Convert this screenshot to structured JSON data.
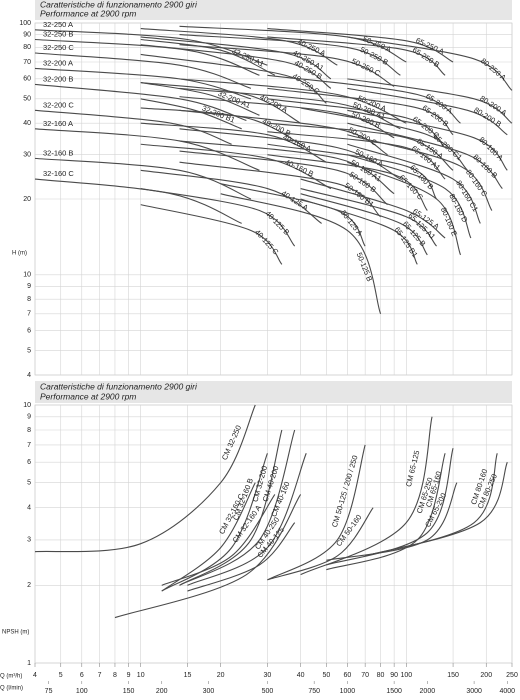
{
  "chart_data": [
    {
      "type": "line",
      "title": "Caratteristiche di funzionamento 2900 giri",
      "subtitle": "Performance at 2900 rpm",
      "ylabel": "H (m)",
      "log": true,
      "grid": true,
      "color": "#4a4a4a",
      "xlim": [
        4,
        250
      ],
      "ylim": [
        4,
        100
      ],
      "yticks": [
        4,
        5,
        6,
        7,
        8,
        9,
        10,
        20,
        30,
        40,
        50,
        60,
        70,
        80,
        90,
        100
      ],
      "series": [
        {
          "name": "32-250 A",
          "x": [
            4,
            15,
            30
          ],
          "values": [
            94,
            86,
            68
          ]
        },
        {
          "name": "32-250 A1",
          "x": [
            10,
            20,
            32
          ],
          "values": [
            86,
            78,
            62
          ]
        },
        {
          "name": "32-250 B",
          "x": [
            4,
            15,
            28
          ],
          "values": [
            86,
            78,
            62
          ]
        },
        {
          "name": "32-250 C",
          "x": [
            4,
            14,
            26
          ],
          "values": [
            76,
            68,
            55
          ]
        },
        {
          "name": "32-200 A",
          "x": [
            4,
            14,
            26
          ],
          "values": [
            66,
            60,
            50
          ]
        },
        {
          "name": "32-200 A1",
          "x": [
            10,
            18,
            28
          ],
          "values": [
            58,
            52,
            43
          ]
        },
        {
          "name": "32-200 B",
          "x": [
            4,
            14,
            25
          ],
          "values": [
            57,
            50,
            41
          ]
        },
        {
          "name": "32-200 B1",
          "x": [
            10,
            16,
            24
          ],
          "values": [
            50,
            45,
            38
          ]
        },
        {
          "name": "32-200 C",
          "x": [
            4,
            13,
            22
          ],
          "values": [
            45,
            40,
            33
          ]
        },
        {
          "name": "32-160 A",
          "x": [
            4,
            14,
            28
          ],
          "values": [
            38,
            34,
            26
          ]
        },
        {
          "name": "32-160 B",
          "x": [
            4,
            14,
            26
          ],
          "values": [
            29,
            26,
            20
          ]
        },
        {
          "name": "32-160 C",
          "x": [
            4,
            13,
            24
          ],
          "values": [
            24,
            21,
            16
          ]
        },
        {
          "name": "40-200 A",
          "x": [
            10,
            25,
            40
          ],
          "values": [
            58,
            52,
            40
          ]
        },
        {
          "name": "40-200 B",
          "x": [
            10,
            25,
            42
          ],
          "values": [
            46,
            42,
            32
          ]
        },
        {
          "name": "40-250 A",
          "x": [
            10,
            35,
            55
          ],
          "values": [
            95,
            85,
            68
          ]
        },
        {
          "name": "40-250 A1",
          "x": [
            10,
            35,
            52
          ],
          "values": [
            88,
            76,
            60
          ]
        },
        {
          "name": "40-250 B",
          "x": [
            10,
            35,
            52
          ],
          "values": [
            82,
            70,
            55
          ]
        },
        {
          "name": "40-250 C",
          "x": [
            10,
            35,
            50
          ],
          "values": [
            75,
            62,
            48
          ]
        },
        {
          "name": "40-160 A",
          "x": [
            10,
            30,
            50
          ],
          "values": [
            40,
            36,
            28
          ]
        },
        {
          "name": "40-160 B",
          "x": [
            10,
            30,
            52
          ],
          "values": [
            33,
            29,
            22
          ]
        },
        {
          "name": "40-125 A",
          "x": [
            10,
            30,
            48
          ],
          "values": [
            26,
            22,
            16
          ]
        },
        {
          "name": "40-125 B",
          "x": [
            10,
            28,
            38
          ],
          "values": [
            22,
            18,
            13
          ]
        },
        {
          "name": "40-125 C",
          "x": [
            10,
            26,
            34
          ],
          "values": [
            19,
            15,
            11
          ]
        },
        {
          "name": "50-250 A",
          "x": [
            14,
            60,
            100
          ],
          "values": [
            97,
            88,
            70
          ]
        },
        {
          "name": "50-250 B",
          "x": [
            14,
            60,
            95
          ],
          "values": [
            90,
            80,
            62
          ]
        },
        {
          "name": "50-250 C",
          "x": [
            14,
            55,
            90
          ],
          "values": [
            82,
            72,
            56
          ]
        },
        {
          "name": "50-200 A",
          "x": [
            14,
            55,
            100
          ],
          "values": [
            60,
            52,
            40
          ]
        },
        {
          "name": "50-200 A1",
          "x": [
            14,
            55,
            95
          ],
          "values": [
            55,
            48,
            38
          ]
        },
        {
          "name": "50-200 B",
          "x": [
            14,
            55,
            90
          ],
          "values": [
            51,
            44,
            35
          ]
        },
        {
          "name": "50-200 C",
          "x": [
            14,
            55,
            85
          ],
          "values": [
            45,
            38,
            30
          ]
        },
        {
          "name": "50-160 A",
          "x": [
            14,
            55,
            95
          ],
          "values": [
            38,
            32,
            24
          ]
        },
        {
          "name": "50-160 A1",
          "x": [
            14,
            55,
            90
          ],
          "values": [
            34,
            29,
            21
          ]
        },
        {
          "name": "50-160 B",
          "x": [
            14,
            55,
            85
          ],
          "values": [
            31,
            26,
            19
          ]
        },
        {
          "name": "50-160 B1",
          "x": [
            14,
            55,
            80
          ],
          "values": [
            28,
            23,
            17
          ]
        },
        {
          "name": "50-125 A",
          "x": [
            20,
            55,
            70
          ],
          "values": [
            23,
            18,
            13
          ]
        },
        {
          "name": "50-125 B",
          "x": [
            20,
            60,
            80
          ],
          "values": [
            21,
            15,
            7
          ]
        },
        {
          "name": "65-250 A",
          "x": [
            30,
            100,
            150
          ],
          "values": [
            95,
            85,
            70
          ]
        },
        {
          "name": "65-250 B",
          "x": [
            30,
            100,
            140
          ],
          "values": [
            88,
            78,
            62
          ]
        },
        {
          "name": "65-200 A",
          "x": [
            30,
            110,
            160
          ],
          "values": [
            62,
            52,
            40
          ]
        },
        {
          "name": "65-200 B",
          "x": [
            30,
            110,
            150
          ],
          "values": [
            55,
            46,
            36
          ]
        },
        {
          "name": "65-200 C",
          "x": [
            30,
            100,
            140
          ],
          "values": [
            50,
            42,
            32
          ]
        },
        {
          "name": "65-200 C1",
          "x": [
            40,
            120,
            170
          ],
          "values": [
            46,
            36,
            26
          ]
        },
        {
          "name": "65-160 A",
          "x": [
            30,
            100,
            150
          ],
          "values": [
            40,
            35,
            26
          ]
        },
        {
          "name": "65-160 A1",
          "x": [
            30,
            100,
            140
          ],
          "values": [
            37,
            32,
            24
          ]
        },
        {
          "name": "65-160 B",
          "x": [
            30,
            100,
            130
          ],
          "values": [
            33,
            27,
            20
          ]
        },
        {
          "name": "65-160 C",
          "x": [
            30,
            90,
            120
          ],
          "values": [
            30,
            25,
            18
          ]
        },
        {
          "name": "65-125 A",
          "x": [
            40,
            100,
            140
          ],
          "values": [
            24,
            18,
            14
          ]
        },
        {
          "name": "65-125 A1",
          "x": [
            40,
            100,
            130
          ],
          "values": [
            22,
            17,
            13
          ]
        },
        {
          "name": "65-125 B",
          "x": [
            40,
            95,
            120
          ],
          "values": [
            21,
            16,
            12
          ]
        },
        {
          "name": "65-125 B1",
          "x": [
            40,
            90,
            110
          ],
          "values": [
            20,
            15,
            11
          ]
        },
        {
          "name": "80-250 A",
          "x": [
            60,
            180,
            250
          ],
          "values": [
            88,
            72,
            54
          ]
        },
        {
          "name": "80-200 A",
          "x": [
            60,
            180,
            250
          ],
          "values": [
            60,
            50,
            40
          ]
        },
        {
          "name": "80-200 B",
          "x": [
            60,
            170,
            240
          ],
          "values": [
            55,
            45,
            36
          ]
        },
        {
          "name": "80-160 A",
          "x": [
            60,
            180,
            240
          ],
          "values": [
            45,
            35,
            26
          ]
        },
        {
          "name": "80-160 B",
          "x": [
            60,
            170,
            230
          ],
          "values": [
            40,
            30,
            22
          ]
        },
        {
          "name": "80-160 C",
          "x": [
            60,
            160,
            210
          ],
          "values": [
            36,
            27,
            18
          ]
        },
        {
          "name": "80-160 C1",
          "x": [
            60,
            150,
            190
          ],
          "values": [
            33,
            24,
            16
          ]
        },
        {
          "name": "80-160 D",
          "x": [
            60,
            140,
            175
          ],
          "values": [
            30,
            22,
            14
          ]
        },
        {
          "name": "80-160 E",
          "x": [
            60,
            130,
            160
          ],
          "values": [
            28,
            20,
            12
          ]
        }
      ]
    },
    {
      "type": "line",
      "title": "Caratteristiche di funzionamento 2900 giri",
      "subtitle": "Performance at 2900 rpm",
      "ylabel": "NPSH (m)",
      "xlabel": "Q (m³/h)",
      "x2label": "Q (l/min)",
      "log": true,
      "grid": true,
      "color": "#4a4a4a",
      "xlim": [
        4,
        250
      ],
      "xticks": [
        4,
        5,
        6,
        7,
        8,
        9,
        10,
        15,
        20,
        30,
        40,
        50,
        60,
        70,
        80,
        90,
        100,
        150,
        200,
        250
      ],
      "x2lim": [
        66.67,
        4166.67
      ],
      "x2ticks": [
        75,
        100,
        150,
        200,
        300,
        500,
        750,
        1000,
        1500,
        2000,
        3000,
        4000
      ],
      "ylim": [
        1,
        10
      ],
      "yticks": [
        1,
        2,
        3,
        4,
        5,
        6,
        7,
        8,
        9,
        10
      ],
      "series": [
        {
          "name": "CM 32-250",
          "x": [
            4,
            10,
            20,
            27
          ],
          "values": [
            2.7,
            2.9,
            5,
            10
          ]
        },
        {
          "name": "CM 32-160 C",
          "x": [
            12,
            20,
            27
          ],
          "values": [
            1.9,
            2.8,
            5
          ]
        },
        {
          "name": "CM 32-160 B",
          "x": [
            12,
            22,
            30
          ],
          "values": [
            1.9,
            2.8,
            6.5
          ]
        },
        {
          "name": "CM 32-160 A",
          "x": [
            12,
            22,
            32
          ],
          "values": [
            2.0,
            2.6,
            4.5
          ]
        },
        {
          "name": "CM 32-200",
          "x": [
            14,
            26,
            34
          ],
          "values": [
            2.0,
            3,
            8
          ]
        },
        {
          "name": "CM 40-200",
          "x": [
            14,
            28,
            38
          ],
          "values": [
            2.0,
            3,
            8
          ]
        },
        {
          "name": "CM 40-160",
          "x": [
            15,
            30,
            42
          ],
          "values": [
            2.0,
            2.8,
            6.5
          ]
        },
        {
          "name": "CM 40-125",
          "x": [
            15,
            28,
            38
          ],
          "values": [
            1.9,
            2.4,
            3.5
          ]
        },
        {
          "name": "CM 40-250",
          "x": [
            8,
            25,
            40
          ],
          "values": [
            1.5,
            2.2,
            4.5
          ]
        },
        {
          "name": "CM 50-125 / 200 / 250",
          "x": [
            30,
            55,
            70
          ],
          "values": [
            2.1,
            3,
            7
          ]
        },
        {
          "name": "CM 50-160",
          "x": [
            30,
            55,
            75
          ],
          "values": [
            2.1,
            2.6,
            4
          ]
        },
        {
          "name": "CM 65-125",
          "x": [
            40,
            100,
            125
          ],
          "values": [
            2.2,
            3.5,
            9
          ]
        },
        {
          "name": "CM 65-250",
          "x": [
            50,
            110,
            140
          ],
          "values": [
            2.3,
            3,
            6.5
          ]
        },
        {
          "name": "CM 65-160",
          "x": [
            50,
            120,
            150
          ],
          "values": [
            2.4,
            3.2,
            6.8
          ]
        },
        {
          "name": "CM 65-200",
          "x": [
            50,
            120,
            155
          ],
          "values": [
            2.5,
            3,
            5
          ]
        },
        {
          "name": "CM 80-160",
          "x": [
            70,
            180,
            220
          ],
          "values": [
            2.6,
            3.5,
            6.5
          ]
        },
        {
          "name": "CM 80-250",
          "x": [
            70,
            190,
            240
          ],
          "values": [
            2.6,
            3.5,
            6
          ]
        }
      ]
    }
  ]
}
